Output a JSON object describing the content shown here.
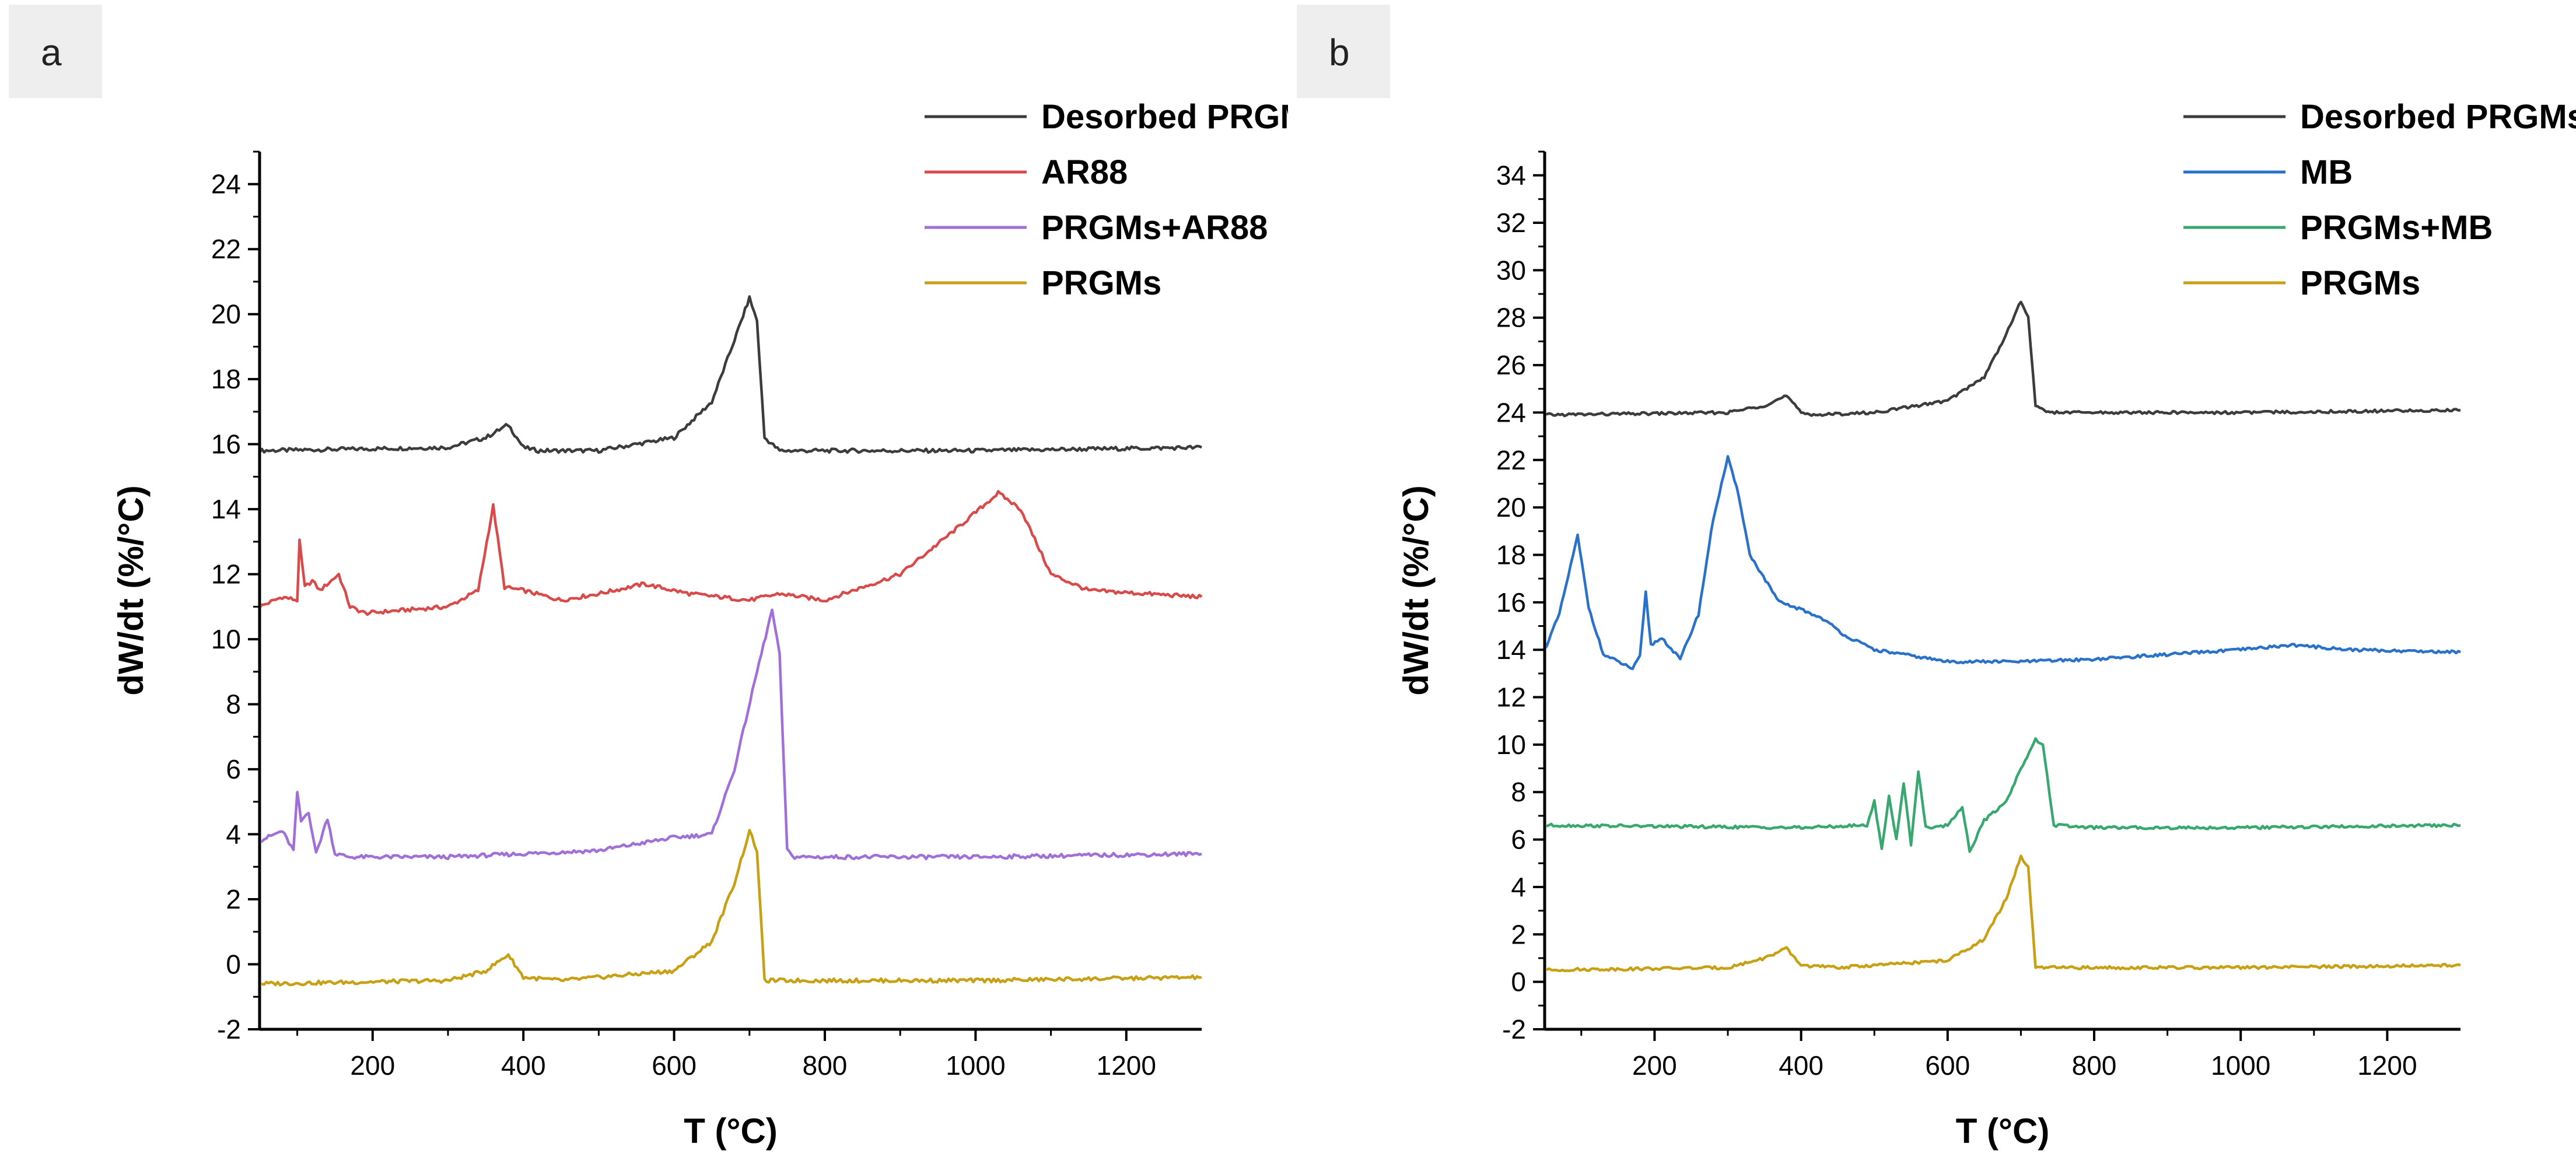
{
  "chart_data": [
    {
      "panel_label": "a",
      "type": "line",
      "xlabel": "T (°C)",
      "ylabel": "dW/dt  (%/°C)",
      "xlim": [
        50,
        1300
      ],
      "ylim": [
        -2,
        25
      ],
      "xticks": [
        200,
        400,
        600,
        800,
        1000,
        1200
      ],
      "yticks": [
        -2,
        0,
        2,
        4,
        6,
        8,
        10,
        12,
        14,
        16,
        18,
        20,
        22,
        24
      ],
      "legend_position": "top-right",
      "series": [
        {
          "name": "Desorbed PRGMs",
          "color": "#3c3c3c",
          "x": [
            50,
            300,
            350,
            380,
            400,
            420,
            500,
            600,
            650,
            680,
            700,
            710,
            720,
            740,
            800,
            1000,
            1300
          ],
          "y": [
            15.8,
            15.9,
            16.2,
            16.6,
            15.9,
            15.8,
            15.8,
            16.2,
            17.3,
            19.2,
            20.5,
            19.8,
            16.2,
            15.8,
            15.8,
            15.8,
            15.9
          ]
        },
        {
          "name": "AR88",
          "color": "#d94b4b",
          "x": [
            50,
            80,
            100,
            103,
            110,
            120,
            130,
            155,
            170,
            190,
            300,
            340,
            360,
            375,
            400,
            450,
            500,
            560,
            620,
            700,
            740,
            800,
            900,
            980,
            1030,
            1060,
            1100,
            1150,
            1300
          ],
          "y": [
            11.0,
            11.3,
            11.2,
            13.0,
            11.6,
            11.8,
            11.5,
            12.0,
            11.0,
            10.8,
            11.0,
            11.5,
            14.1,
            11.6,
            11.5,
            11.2,
            11.4,
            11.7,
            11.4,
            11.2,
            11.4,
            11.2,
            12.0,
            13.5,
            14.5,
            14.0,
            12.0,
            11.5,
            11.3
          ]
        },
        {
          "name": "PRGMs+AR88",
          "color": "#a070d8",
          "x": [
            50,
            80,
            95,
            100,
            105,
            115,
            125,
            140,
            150,
            170,
            300,
            500,
            600,
            650,
            680,
            710,
            730,
            740,
            750,
            760,
            800,
            1000,
            1300
          ],
          "y": [
            3.8,
            4.1,
            3.5,
            5.3,
            4.4,
            4.7,
            3.4,
            4.5,
            3.4,
            3.3,
            3.3,
            3.5,
            3.9,
            4.0,
            6.0,
            9.0,
            10.9,
            9.5,
            3.5,
            3.3,
            3.3,
            3.3,
            3.4
          ]
        },
        {
          "name": "PRGMs",
          "color": "#c8a014",
          "x": [
            50,
            300,
            350,
            380,
            400,
            450,
            600,
            650,
            680,
            700,
            710,
            720,
            740,
            800,
            1000,
            1300
          ],
          "y": [
            -0.6,
            -0.5,
            -0.2,
            0.3,
            -0.4,
            -0.5,
            -0.2,
            0.7,
            2.5,
            4.1,
            3.5,
            -0.5,
            -0.5,
            -0.5,
            -0.5,
            -0.4
          ]
        }
      ]
    },
    {
      "panel_label": "b",
      "type": "line",
      "xlabel": "T (°C)",
      "ylabel": "dW/dt  (%/°C)",
      "xlim": [
        50,
        1300
      ],
      "ylim": [
        -2,
        35
      ],
      "xticks": [
        200,
        400,
        600,
        800,
        1000,
        1200
      ],
      "yticks": [
        -2,
        0,
        2,
        4,
        6,
        8,
        10,
        12,
        14,
        16,
        18,
        20,
        22,
        24,
        26,
        28,
        30,
        32,
        34
      ],
      "legend_position": "top-right",
      "series": [
        {
          "name": "Desorbed PRGMs",
          "color": "#3c3c3c",
          "x": [
            50,
            300,
            350,
            380,
            400,
            420,
            500,
            600,
            650,
            680,
            700,
            710,
            720,
            740,
            800,
            1000,
            1300
          ],
          "y": [
            23.9,
            24.0,
            24.3,
            24.7,
            24.0,
            23.9,
            24.0,
            24.5,
            25.5,
            27.3,
            28.7,
            28.0,
            24.3,
            24.0,
            24.0,
            24.0,
            24.1
          ]
        },
        {
          "name": "MB",
          "color": "#2a72c9",
          "x": [
            50,
            70,
            95,
            110,
            130,
            170,
            180,
            188,
            195,
            210,
            235,
            260,
            280,
            300,
            315,
            330,
            370,
            400,
            430,
            460,
            500,
            600,
            700,
            800,
            1000,
            1070,
            1150,
            1300
          ],
          "y": [
            14.0,
            15.5,
            18.8,
            15.8,
            13.8,
            13.2,
            13.7,
            16.4,
            14.2,
            14.5,
            13.6,
            15.5,
            19.5,
            22.1,
            20.5,
            18.0,
            16.0,
            15.7,
            15.3,
            14.6,
            14.0,
            13.5,
            13.5,
            13.6,
            14.0,
            14.2,
            14.0,
            13.9
          ]
        },
        {
          "name": "PRGMs+MB",
          "color": "#38a870",
          "x": [
            50,
            400,
            490,
            500,
            510,
            520,
            530,
            540,
            550,
            560,
            570,
            600,
            620,
            630,
            650,
            680,
            700,
            720,
            730,
            745,
            800,
            1000,
            1300
          ],
          "y": [
            6.6,
            6.5,
            6.6,
            7.6,
            5.6,
            7.8,
            6.0,
            8.4,
            5.8,
            8.9,
            6.5,
            6.6,
            7.4,
            5.5,
            6.8,
            7.6,
            9.0,
            10.2,
            10.0,
            6.6,
            6.5,
            6.5,
            6.6
          ]
        },
        {
          "name": "PRGMs",
          "color": "#c8a014",
          "x": [
            50,
            300,
            350,
            380,
            400,
            450,
            600,
            650,
            680,
            700,
            710,
            720,
            740,
            800,
            1000,
            1300
          ],
          "y": [
            0.5,
            0.6,
            1.0,
            1.4,
            0.7,
            0.6,
            0.9,
            1.8,
            3.5,
            5.3,
            4.8,
            0.6,
            0.6,
            0.6,
            0.6,
            0.7
          ]
        }
      ]
    }
  ]
}
